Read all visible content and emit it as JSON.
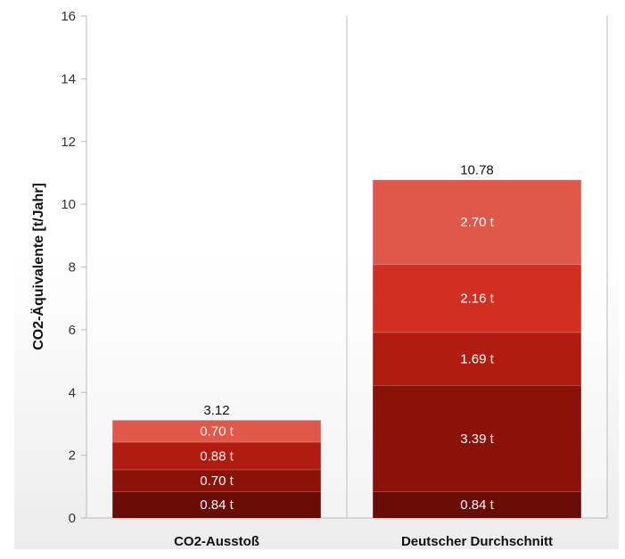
{
  "chart_data": {
    "type": "stacked-bar",
    "ylabel": "CO2-Äquivalente [t/Jahr]",
    "xlabel": "",
    "title": "",
    "ylim": [
      0,
      16
    ],
    "yticks": [
      "0",
      "2",
      "4",
      "6",
      "8",
      "10",
      "12",
      "14",
      "16"
    ],
    "grid": "x-category-separator",
    "legend": "none",
    "categories": [
      "CO2-Ausstoß",
      "Deutscher Durchschnitt"
    ],
    "stacks": [
      {
        "category": "CO2-Ausstoß",
        "total": 3.12,
        "total_label": "3.12",
        "segments": [
          {
            "value": 0.84,
            "label": "0.84 t",
            "color": "#6a0c06"
          },
          {
            "value": 0.7,
            "label": "0.70 t",
            "color": "#8a1208"
          },
          {
            "value": 0.88,
            "label": "0.88 t",
            "color": "#b01d10"
          },
          {
            "value": 0.7,
            "label": "0.70 t",
            "color": "#e0584a"
          }
        ]
      },
      {
        "category": "Deutscher Durchschnitt",
        "total": 10.78,
        "total_label": "10.78",
        "segments": [
          {
            "value": 0.84,
            "label": "0.84 t",
            "color": "#6a0c06"
          },
          {
            "value": 3.39,
            "label": "3.39 t",
            "color": "#8a1208"
          },
          {
            "value": 1.69,
            "label": "1.69 t",
            "color": "#b01d10"
          },
          {
            "value": 2.16,
            "label": "2.16 t",
            "color": "#d22f20"
          },
          {
            "value": 2.7,
            "label": "2.70 t",
            "color": "#e0584a"
          }
        ]
      }
    ]
  },
  "colors": {
    "background_top": "#ffffff",
    "background_bottom": "#ececec",
    "axis": "#bbbbbb",
    "separator": "#bfbfbf",
    "tick_text": "#333333",
    "segment_text": "#ffffff"
  }
}
